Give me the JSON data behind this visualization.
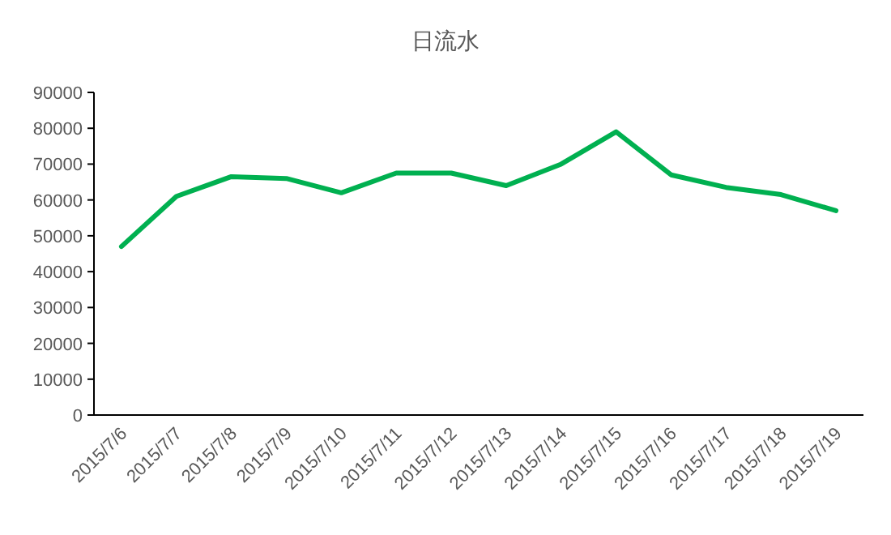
{
  "chart_data": {
    "type": "line",
    "title": "日流水",
    "categories": [
      "2015/7/6",
      "2015/7/7",
      "2015/7/8",
      "2015/7/9",
      "2015/7/10",
      "2015/7/11",
      "2015/7/12",
      "2015/7/13",
      "2015/7/14",
      "2015/7/15",
      "2015/7/16",
      "2015/7/17",
      "2015/7/18",
      "2015/7/19"
    ],
    "series": [
      {
        "color": "#00b050",
        "values": [
          47000,
          61000,
          66500,
          66000,
          62000,
          67500,
          67500,
          64000,
          70000,
          79000,
          67000,
          63500,
          61500,
          57000
        ]
      }
    ],
    "ylim": [
      0,
      90000
    ],
    "yticks": [
      0,
      10000,
      20000,
      30000,
      40000,
      50000,
      60000,
      70000,
      80000,
      90000
    ],
    "grid": false,
    "marker": "none",
    "line_style": "solid"
  }
}
